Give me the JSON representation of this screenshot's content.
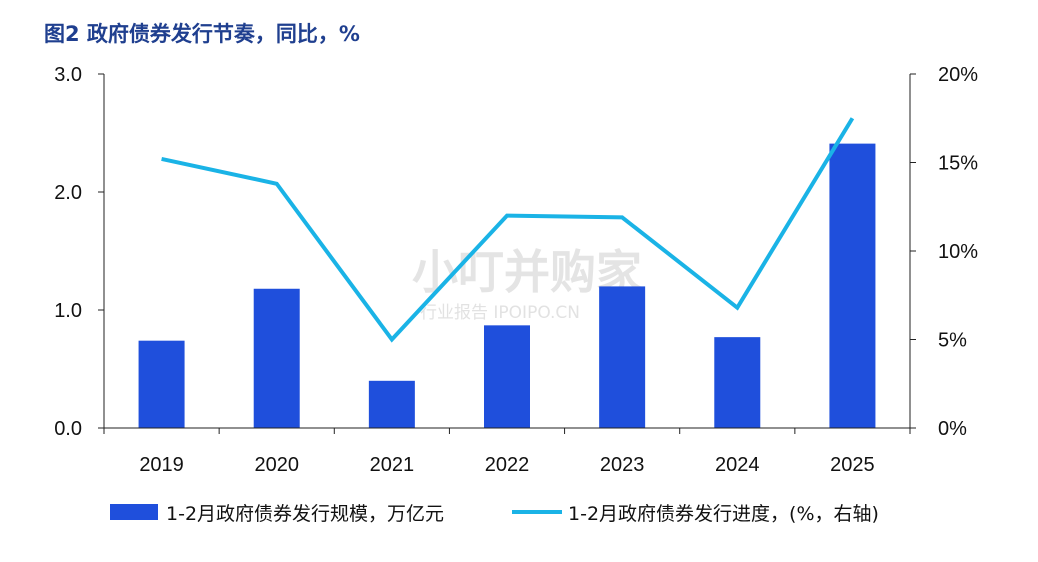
{
  "title": "图2  政府债券发行节奏，同比，%",
  "watermark": {
    "main": "小叮并购家",
    "sub": "行业报告 IPOIPO.CN"
  },
  "chart_data": {
    "type": "bar+line",
    "title": "图2  政府债券发行节奏，同比，%",
    "categories": [
      "2019",
      "2020",
      "2021",
      "2022",
      "2023",
      "2024",
      "2025"
    ],
    "left_axis": {
      "ylim": [
        0,
        3.0
      ],
      "ticks": [
        "0.0",
        "1.0",
        "2.0",
        "3.0"
      ]
    },
    "right_axis": {
      "ylim": [
        0,
        20
      ],
      "ticks": [
        "0%",
        "5%",
        "10%",
        "15%",
        "20%"
      ]
    },
    "series": [
      {
        "name": "1-2月政府债券发行规模，万亿元",
        "type": "bar",
        "axis": "left",
        "color": "#1f4fdc",
        "values": [
          0.74,
          1.18,
          0.4,
          0.87,
          1.2,
          0.77,
          2.41
        ]
      },
      {
        "name": "1-2月政府债券发行进度，(%，右轴)",
        "type": "line",
        "axis": "right",
        "color": "#1ab3e6",
        "values": [
          15.2,
          13.8,
          5.0,
          12.0,
          11.9,
          6.8,
          17.5
        ]
      }
    ],
    "grid": false,
    "legend": "bottom"
  }
}
